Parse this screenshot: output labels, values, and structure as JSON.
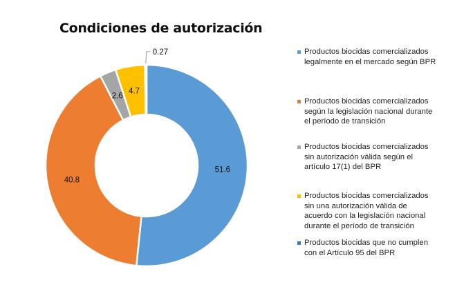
{
  "chart_data": {
    "type": "pie",
    "donut": true,
    "title": "Condiciones de autorización",
    "categories": [
      "Productos biocidas comercializados\n legalmente en el mercado según BPR",
      "Productos biocidas comercializados\nsegún la legislación nacional durante\nel período de transición",
      "Productos biocidas comercializados\nsin autorización válida según el\nartículo 17(1)  del BPR",
      "Productos biocidas comercializados\nsin una autorización válida de\nacuerdo con la legislación nacional\ndurante el período de transición",
      "Productos biocidas que no cumplen\ncon el Artículo 95 del BPR"
    ],
    "values": [
      51.6,
      40.8,
      2.6,
      4.7,
      0.27
    ],
    "data_labels": [
      "51.6",
      "40.8",
      "2.6",
      "4.7",
      "0.27"
    ],
    "colors": [
      "#5B9BD5",
      "#ED7D31",
      "#A5A5A5",
      "#FFC000",
      "#4472C4"
    ],
    "legend_position": "right"
  }
}
